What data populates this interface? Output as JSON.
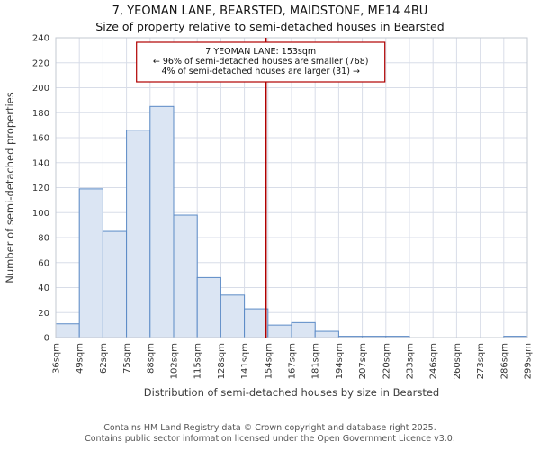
{
  "title": "7, YEOMAN LANE, BEARSTED, MAIDSTONE, ME14 4BU",
  "subtitle": "Size of property relative to semi-detached houses in Bearsted",
  "footer": {
    "line1": "Contains HM Land Registry data © Crown copyright and database right 2025.",
    "line2": "Contains public sector information licensed under the Open Government Licence v3.0."
  },
  "chart_data": {
    "type": "bar",
    "title": "7, YEOMAN LANE, BEARSTED, MAIDSTONE, ME14 4BU",
    "subtitle": "Size of property relative to semi-detached houses in Bearsted",
    "xlabel": "Distribution of semi-detached houses by size in Bearsted",
    "ylabel": "Number of semi-detached properties",
    "categories": [
      "36sqm",
      "49sqm",
      "62sqm",
      "75sqm",
      "88sqm",
      "102sqm",
      "115sqm",
      "128sqm",
      "141sqm",
      "154sqm",
      "167sqm",
      "181sqm",
      "194sqm",
      "207sqm",
      "220sqm",
      "233sqm",
      "246sqm",
      "260sqm",
      "273sqm",
      "286sqm",
      "299sqm"
    ],
    "values": [
      11,
      119,
      85,
      166,
      185,
      98,
      48,
      34,
      23,
      10,
      12,
      5,
      1,
      1,
      1,
      0,
      0,
      0,
      0,
      1
    ],
    "ylim": [
      0,
      240
    ],
    "ytick_step": 20,
    "grid": true,
    "bar_fill": "#dbe5f3",
    "bar_stroke": "#5b8ac6",
    "marker": {
      "label": "153sqm",
      "between": [
        "141sqm",
        "154sqm"
      ],
      "fraction": 0.92,
      "color": "#b00000",
      "annotation_lines": [
        "7 YEOMAN LANE: 153sqm",
        "← 96% of semi-detached houses are smaller (768)",
        "4% of semi-detached houses are larger (31) →"
      ]
    }
  }
}
